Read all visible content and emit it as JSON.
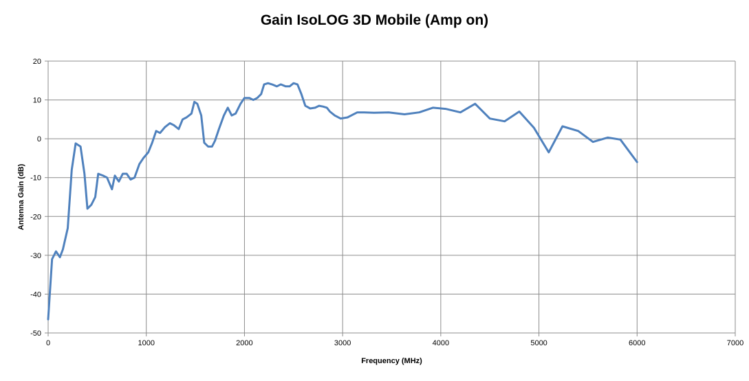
{
  "chart_data": {
    "type": "line",
    "title": "Gain IsoLOG 3D Mobile (Amp on)",
    "xlabel": "Frequency (MHz)",
    "ylabel": "Antenna Gain (dB)",
    "xlim": [
      0,
      7000
    ],
    "ylim": [
      -50,
      20
    ],
    "xticks": [
      0,
      1000,
      2000,
      3000,
      4000,
      5000,
      6000,
      7000
    ],
    "yticks": [
      -50,
      -40,
      -30,
      -20,
      -10,
      0,
      10,
      20
    ],
    "grid": true,
    "legend": "none",
    "line_color": "#4F81BD",
    "series": [
      {
        "x": [
          0,
          40,
          80,
          120,
          150,
          200,
          240,
          280,
          330,
          370,
          400,
          440,
          480,
          510,
          560,
          600,
          650,
          680,
          720,
          760,
          800,
          840,
          880,
          930,
          970,
          1020,
          1060,
          1100,
          1140,
          1190,
          1240,
          1280,
          1330,
          1370,
          1410,
          1460,
          1490,
          1520,
          1560,
          1590,
          1630,
          1670,
          1700,
          1740,
          1790,
          1830,
          1870,
          1910,
          1960,
          2000,
          2050,
          2090,
          2130,
          2170,
          2200,
          2240,
          2280,
          2330,
          2370,
          2420,
          2460,
          2500,
          2540,
          2580,
          2620,
          2670,
          2720,
          2760,
          2800,
          2840,
          2870,
          2920,
          2980,
          3050,
          3150,
          3220,
          3320,
          3470,
          3630,
          3780,
          3920,
          4050,
          4200,
          4350,
          4500,
          4650,
          4800,
          4950,
          5100,
          5240,
          5400,
          5550,
          5700,
          5830,
          6000
        ],
        "y": [
          -46.5,
          -31,
          -29,
          -30.5,
          -28.5,
          -23,
          -8,
          -1.2,
          -2,
          -9,
          -18,
          -17,
          -15,
          -9,
          -9.5,
          -10,
          -13,
          -9.5,
          -11,
          -9,
          -9,
          -10.5,
          -10,
          -6.5,
          -5,
          -3.5,
          -1,
          2,
          1.5,
          3,
          4,
          3.5,
          2.5,
          5,
          5.5,
          6.5,
          9.5,
          9,
          6,
          -1,
          -2,
          -2,
          -0.5,
          2.5,
          6,
          8,
          6,
          6.5,
          9,
          10.5,
          10.5,
          10,
          10.5,
          11.5,
          14,
          14.3,
          14,
          13.5,
          14,
          13.5,
          13.5,
          14.3,
          14,
          11.5,
          8.5,
          7.8,
          8,
          8.5,
          8.3,
          8,
          7,
          6,
          5.2,
          5.5,
          6.8,
          6.8,
          6.7,
          6.8,
          6.3,
          6.8,
          8,
          7.7,
          6.8,
          9,
          5.2,
          4.5,
          7,
          2.8,
          -3.5,
          3.2,
          2,
          -0.8,
          0.3,
          -0.2,
          -6
        ]
      }
    ]
  }
}
